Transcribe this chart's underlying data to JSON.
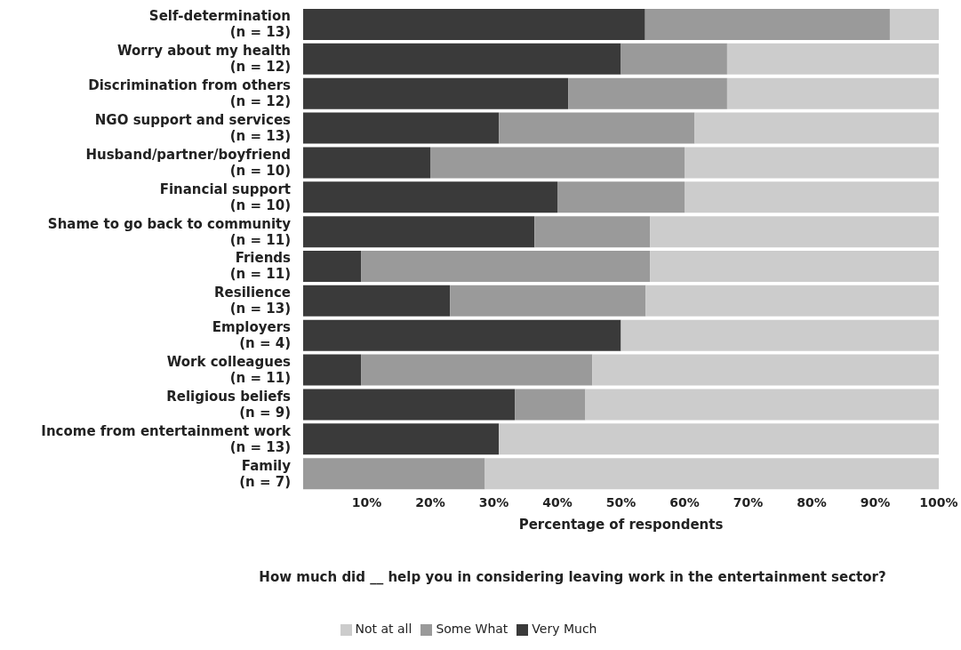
{
  "chart_data": {
    "type": "bar",
    "orientation": "horizontal",
    "stacked": true,
    "categories": [
      "Self-determination\n(n = 13)",
      "Worry about my health\n(n = 12)",
      "Discrimination from others\n(n = 12)",
      "NGO support and services\n(n = 13)",
      "Husband/partner/boyfriend\n(n = 10)",
      "Financial support\n(n = 10)",
      "Shame to go back to community\n(n = 11)",
      "Friends\n(n = 11)",
      "Resilience\n(n = 13)",
      "Employers\n(n = 4)",
      "Work colleagues\n(n = 11)",
      "Religious beliefs\n(n = 9)",
      "Income from entertainment work\n(n = 13)",
      "Family\n(n = 7)"
    ],
    "series": [
      {
        "name": "Very Much",
        "color": "#3a3a3a",
        "values": [
          53.8,
          50,
          41.7,
          30.8,
          20,
          40,
          36.4,
          9.1,
          23.1,
          50,
          9.1,
          33.3,
          30.8,
          0
        ]
      },
      {
        "name": "Some What",
        "color": "#9a9a9a",
        "values": [
          38.5,
          16.7,
          25,
          30.8,
          40,
          20,
          18.2,
          45.5,
          30.8,
          0,
          36.4,
          11.1,
          0,
          28.6
        ]
      },
      {
        "name": "Not at all",
        "color": "#cccccc",
        "values": [
          7.7,
          33.3,
          33.3,
          38.4,
          40,
          40,
          45.4,
          45.4,
          46.1,
          50,
          54.5,
          55.6,
          69.2,
          71.4
        ]
      }
    ],
    "xlim": [
      0,
      100
    ],
    "xticks": [
      {
        "value": 10,
        "label": "10%"
      },
      {
        "value": 20,
        "label": "20%"
      },
      {
        "value": 30,
        "label": "30%"
      },
      {
        "value": 40,
        "label": "40%"
      },
      {
        "value": 50,
        "label": "50%"
      },
      {
        "value": 60,
        "label": "60%"
      },
      {
        "value": 70,
        "label": "70%"
      },
      {
        "value": 80,
        "label": "80%"
      },
      {
        "value": 90,
        "label": "90%"
      },
      {
        "value": 100,
        "label": "100%"
      }
    ],
    "xlabel": "Percentage of respondents",
    "annotations": [
      "How much did __ help you in considering leaving work in the entertainment sector?"
    ],
    "legend": "bottom",
    "grid": false
  }
}
